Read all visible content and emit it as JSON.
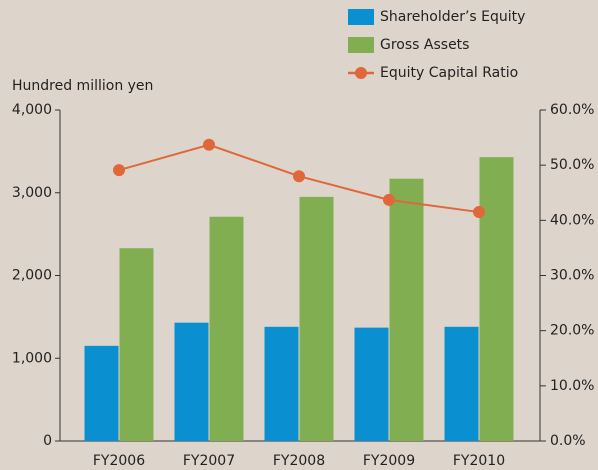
{
  "chart_data": {
    "type": "bar_line",
    "y_axis_label": "Hundred million yen",
    "categories": [
      "FY2006",
      "FY2007",
      "FY2008",
      "FY2009",
      "FY2010"
    ],
    "series": [
      {
        "name": "Shareholder’s Equity",
        "type": "bar",
        "color": "#0a8fd0",
        "values": [
          1150,
          1430,
          1380,
          1370,
          1380
        ]
      },
      {
        "name": "Gross Assets",
        "type": "bar",
        "color": "#82ae52",
        "values": [
          2330,
          2710,
          2950,
          3170,
          3430
        ]
      },
      {
        "name": "Equity Capital Ratio",
        "type": "line",
        "axis": "y2",
        "color": "#e0673a",
        "values": [
          49.1,
          53.7,
          48.0,
          43.7,
          41.5
        ]
      }
    ],
    "ylim": [
      0,
      4000
    ],
    "yticks": [
      0,
      {
        "value": 1000,
        "label": "1,000"
      },
      {
        "value": 2000,
        "label": "2,000"
      },
      {
        "value": 3000,
        "label": "3,000"
      },
      {
        "value": 4000,
        "label": "4,000"
      }
    ],
    "y2lim": [
      0,
      60
    ],
    "y2ticks": [
      {
        "value": 0,
        "label": "0.0%"
      },
      {
        "value": 10,
        "label": "10.0%"
      },
      {
        "value": 20,
        "label": "20.0%"
      },
      {
        "value": 30,
        "label": "30.0%"
      },
      {
        "value": 40,
        "label": "40.0%"
      },
      {
        "value": 50,
        "label": "50.0%"
      },
      {
        "value": 60,
        "label": "60.0%"
      }
    ],
    "legend": "top-right"
  }
}
